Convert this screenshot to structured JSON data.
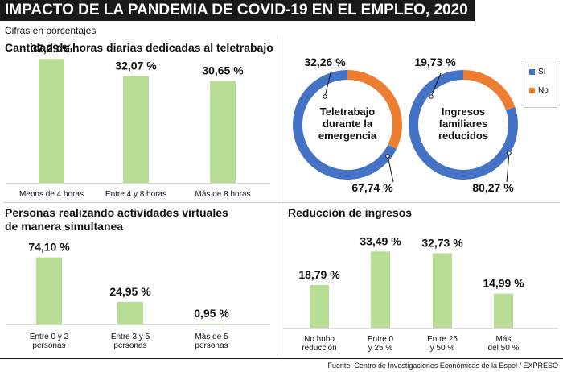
{
  "header": {
    "title": "IMPACTO DE LA PANDEMIA DE COVID-19 EN EL EMPLEO, 2020",
    "subtitle": "Cifras en porcentajes"
  },
  "footer": {
    "source": "Fuente: Centro de Investigaciones Económicas de la Espol / EXPRESO"
  },
  "colors": {
    "bar": "#b8dd94",
    "si": "#4472c4",
    "no": "#ed7d31",
    "axis": "#d9d9d9"
  },
  "legend": {
    "si_label": "Sí",
    "no_label": "No"
  },
  "chart_data": [
    {
      "id": "horas",
      "type": "bar",
      "title": "Cantidad de horas diarias dedicadas al teletrabajo",
      "categories": [
        "Menos de 4 horas",
        "Entre 4 y 8 horas",
        "Más de 8 horas"
      ],
      "values": [
        37.29,
        32.07,
        30.65
      ],
      "labels": [
        "37,29 %",
        "32,07 %",
        "30,65 %"
      ],
      "ylim": [
        0,
        40
      ]
    },
    {
      "id": "teletrabajo",
      "type": "pie",
      "center_label": [
        "Teletrabajo",
        "durante la",
        "emergencia"
      ],
      "slices": [
        {
          "name": "Sí",
          "value": 67.74,
          "label": "67,74 %"
        },
        {
          "name": "No",
          "value": 32.26,
          "label": "32,26 %"
        }
      ]
    },
    {
      "id": "ingresos",
      "type": "pie",
      "center_label": [
        "Ingresos",
        "familiares",
        "reducidos"
      ],
      "slices": [
        {
          "name": "Sí",
          "value": 80.27,
          "label": "80,27 %"
        },
        {
          "name": "No",
          "value": 19.73,
          "label": "19,73 %"
        }
      ]
    },
    {
      "id": "personas",
      "type": "bar",
      "title": [
        "Personas realizando actividades virtuales",
        "de manera simultanea"
      ],
      "categories": [
        [
          "Entre 0 y 2",
          "personas"
        ],
        [
          "Entre 3 y 5",
          "personas"
        ],
        [
          "Más de 5",
          "personas"
        ]
      ],
      "values": [
        74.1,
        24.95,
        0.95
      ],
      "labels": [
        "74,10 %",
        "24,95 %",
        "0,95 %"
      ],
      "ylim": [
        0,
        80
      ]
    },
    {
      "id": "reduccion",
      "type": "bar",
      "title": "Reducción de ingresos",
      "categories": [
        [
          "No hubo",
          "reducción"
        ],
        [
          "Entre 0",
          "y 25 %"
        ],
        [
          "Entre 25",
          "y 50 %"
        ],
        [
          "Más",
          "del 50 %"
        ]
      ],
      "values": [
        18.79,
        33.49,
        32.73,
        14.99
      ],
      "labels": [
        "18,79 %",
        "33,49 %",
        "32,73 %",
        "14,99 %"
      ],
      "ylim": [
        0,
        35
      ]
    }
  ]
}
